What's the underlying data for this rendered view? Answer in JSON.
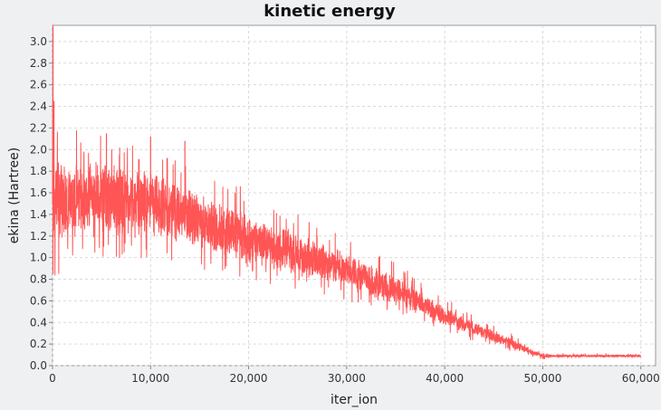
{
  "chart_data": {
    "type": "line",
    "title": "kinetic energy",
    "xlabel": "iter_ion",
    "ylabel": "ekina (Hartree)",
    "xlim": [
      0,
      61500
    ],
    "ylim": [
      0,
      3.15
    ],
    "x_ticks": [
      0,
      10000,
      20000,
      30000,
      40000,
      50000,
      60000
    ],
    "x_tick_labels": [
      "0",
      "10,000",
      "20,000",
      "30,000",
      "40,000",
      "50,000",
      "60,000"
    ],
    "y_ticks": [
      0.0,
      0.2,
      0.4,
      0.6,
      0.8,
      1.0,
      1.2,
      1.4,
      1.6,
      1.8,
      2.0,
      2.2,
      2.4,
      2.6,
      2.8,
      3.0
    ],
    "y_tick_labels": [
      "0.0",
      "0.2",
      "0.4",
      "0.6",
      "0.8",
      "1.0",
      "1.2",
      "1.4",
      "1.6",
      "1.8",
      "2.0",
      "2.2",
      "2.4",
      "2.6",
      "2.8",
      "3.0"
    ],
    "grid": true,
    "legend": "none",
    "series": [
      {
        "color": "#ff5555",
        "x": [
          0,
          300,
          1000,
          2000,
          3000,
          4000,
          5000,
          6000,
          7000,
          8000,
          9000,
          10000,
          11000,
          12000,
          13000,
          14000,
          15000,
          16000,
          17000,
          18000,
          19000,
          20000,
          21000,
          22000,
          23000,
          24000,
          25000,
          26000,
          27000,
          28000,
          29000,
          30000,
          31000,
          32000,
          33000,
          34000,
          35000,
          36000,
          37000,
          38000,
          39000,
          40000,
          41000,
          42000,
          43000,
          44000,
          45000,
          46000,
          47000,
          48000,
          49000,
          50000,
          51000,
          52000,
          53000,
          54000,
          55000,
          56000,
          57000,
          58000,
          59000,
          60000
        ],
        "y_mean": [
          1.5,
          1.5,
          1.5,
          1.52,
          1.53,
          1.54,
          1.55,
          1.54,
          1.52,
          1.5,
          1.5,
          1.49,
          1.46,
          1.43,
          1.4,
          1.35,
          1.32,
          1.3,
          1.27,
          1.24,
          1.21,
          1.18,
          1.15,
          1.12,
          1.09,
          1.06,
          1.03,
          1.0,
          0.97,
          0.94,
          0.91,
          0.88,
          0.84,
          0.8,
          0.76,
          0.72,
          0.69,
          0.65,
          0.6,
          0.56,
          0.51,
          0.46,
          0.42,
          0.38,
          0.34,
          0.31,
          0.27,
          0.24,
          0.2,
          0.16,
          0.12,
          0.09,
          0.09,
          0.09,
          0.09,
          0.09,
          0.09,
          0.09,
          0.09,
          0.09,
          0.09,
          0.09
        ],
        "y_spread": [
          0.45,
          0.45,
          0.32,
          0.3,
          0.3,
          0.3,
          0.32,
          0.3,
          0.28,
          0.28,
          0.28,
          0.28,
          0.26,
          0.25,
          0.25,
          0.24,
          0.23,
          0.22,
          0.22,
          0.22,
          0.21,
          0.2,
          0.2,
          0.19,
          0.19,
          0.18,
          0.17,
          0.17,
          0.16,
          0.16,
          0.15,
          0.15,
          0.14,
          0.14,
          0.13,
          0.12,
          0.12,
          0.11,
          0.1,
          0.09,
          0.08,
          0.08,
          0.07,
          0.06,
          0.06,
          0.05,
          0.05,
          0.04,
          0.04,
          0.03,
          0.02,
          0.015,
          0.01,
          0.01,
          0.01,
          0.01,
          0.01,
          0.01,
          0.01,
          0.01,
          0.01,
          0.01
        ],
        "peaks": [
          {
            "x": 50,
            "y": 3.15
          },
          {
            "x": 150,
            "y": 2.45
          },
          {
            "x": 5500,
            "y": 2.15
          },
          {
            "x": 10000,
            "y": 2.12
          },
          {
            "x": 13500,
            "y": 2.08
          },
          {
            "x": 50,
            "y": 0.85
          }
        ]
      }
    ]
  }
}
